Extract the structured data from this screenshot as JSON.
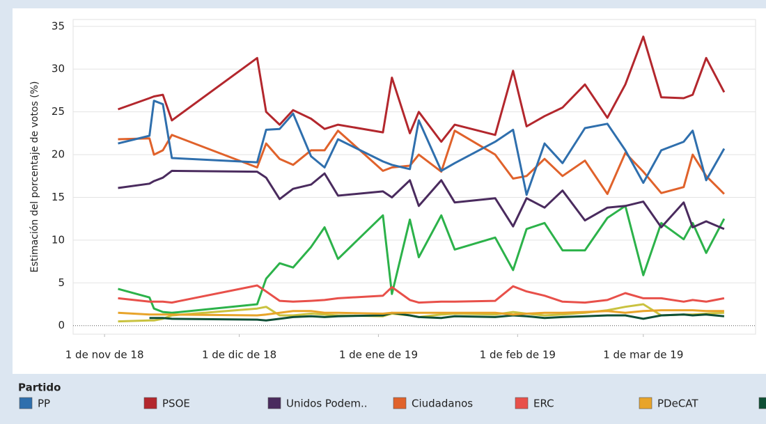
{
  "chart_data": {
    "type": "line",
    "y_label": "Estimación del porcentaje de votos (%)",
    "legend_title": "Partido",
    "legend": "bottom",
    "grid": true,
    "x": [
      "2018-11-04",
      "2018-11-11",
      "2018-11-12",
      "2018-11-14",
      "2018-11-16",
      "2018-12-05",
      "2018-12-07",
      "2018-12-10",
      "2018-12-13",
      "2018-12-17",
      "2018-12-20",
      "2018-12-23",
      "2019-01-02",
      "2019-01-04",
      "2019-01-08",
      "2019-01-10",
      "2019-01-15",
      "2019-01-18",
      "2019-01-27",
      "2019-01-31",
      "2019-02-03",
      "2019-02-07",
      "2019-02-11",
      "2019-02-16",
      "2019-02-21",
      "2019-02-25",
      "2019-03-01",
      "2019-03-05",
      "2019-03-10",
      "2019-03-12",
      "2019-03-15",
      "2019-03-19"
    ],
    "xlim": [
      "2018-10-25",
      "2019-03-26"
    ],
    "xticks": [
      {
        "value": "2018-11-01",
        "label": "1 de nov de 18"
      },
      {
        "value": "2018-12-01",
        "label": "1 de dic de 18"
      },
      {
        "value": "2019-01-01",
        "label": "1 de ene de 19"
      },
      {
        "value": "2019-02-01",
        "label": "1 de feb de 19"
      },
      {
        "value": "2019-03-01",
        "label": "1 de mar de 19"
      }
    ],
    "ylim": [
      -1,
      35.8
    ],
    "yticks": [
      0,
      5,
      10,
      15,
      20,
      25,
      30,
      35
    ],
    "series": [
      {
        "name": "PP",
        "color": "#2f6fad",
        "values": [
          21.3,
          22.2,
          26.3,
          25.9,
          19.6,
          19.1,
          22.9,
          23,
          24.8,
          19.8,
          18.5,
          21.8,
          19.2,
          18.8,
          18.3,
          24,
          18.1,
          19,
          21.5,
          22.9,
          15.3,
          21.3,
          19,
          23.1,
          23.6,
          20.5,
          16.7,
          20.5,
          21.5,
          22.8,
          17,
          20.7
        ]
      },
      {
        "name": "PSOE",
        "color": "#b3272d",
        "values": [
          25.3,
          26.6,
          26.8,
          27,
          24,
          31.3,
          25,
          23.5,
          25.2,
          24.2,
          23,
          23.5,
          22.6,
          29,
          22.5,
          25,
          21.5,
          23.5,
          22.3,
          29.8,
          23.3,
          24.5,
          25.5,
          28.2,
          24.3,
          28.2,
          33.8,
          26.7,
          26.6,
          27,
          31.3,
          27.3
        ]
      },
      {
        "name": "Unidos Podem..",
        "color": "#4a2b5e",
        "values": [
          16.1,
          16.6,
          16.9,
          17.3,
          18.1,
          18,
          17.3,
          14.8,
          16,
          16.5,
          17.8,
          15.2,
          15.7,
          15,
          17,
          14,
          17,
          14.4,
          14.9,
          11.6,
          14.9,
          13.8,
          15.8,
          12.3,
          13.8,
          14,
          14.5,
          11.5,
          14.4,
          11.5,
          12.2,
          11.3
        ]
      },
      {
        "name": "Ciudadanos",
        "color": "#e0622b",
        "values": [
          21.8,
          21.9,
          20,
          20.5,
          22.3,
          18.5,
          21.3,
          19.5,
          18.8,
          20.5,
          20.5,
          22.8,
          18.1,
          18.5,
          18.7,
          20,
          18,
          22.8,
          20,
          17.2,
          17.5,
          19.5,
          17.5,
          19.3,
          15.4,
          20.2,
          18,
          15.5,
          16.2,
          20,
          17.5,
          15.4
        ]
      },
      {
        "name": "ERC",
        "color": "#e8504a",
        "values": [
          3.2,
          2.8,
          2.8,
          2.8,
          2.7,
          4.7,
          4,
          2.9,
          2.8,
          2.9,
          3,
          3.2,
          3.5,
          4.5,
          3,
          2.7,
          2.8,
          2.8,
          2.9,
          4.6,
          4,
          3.5,
          2.8,
          2.7,
          3,
          3.8,
          3.2,
          3.2,
          2.8,
          3,
          2.8,
          3.2
        ]
      },
      {
        "name": "PDeCAT",
        "color": "#e8a42a",
        "values": [
          1.5,
          1.3,
          1.3,
          1.3,
          1.3,
          1.2,
          1.3,
          1.5,
          1.7,
          1.7,
          1.5,
          1.5,
          1.4,
          1.5,
          1.5,
          1.5,
          1.5,
          1.5,
          1.5,
          1.3,
          1.4,
          1.5,
          1.5,
          1.6,
          1.7,
          1.5,
          1.7,
          1.8,
          1.8,
          1.8,
          1.7,
          1.7
        ]
      },
      {
        "color": "#0e4f35",
        "values": [
          null,
          0.9,
          0.9,
          0.9,
          0.8,
          0.7,
          0.6,
          0.8,
          1,
          1.1,
          1,
          1.1,
          1.2,
          1.5,
          1.2,
          1,
          0.9,
          1.1,
          1,
          1.2,
          1.1,
          0.9,
          1,
          1.1,
          1.2,
          1.2,
          0.8,
          1.2,
          1.3,
          1.2,
          1.3,
          1.1
        ]
      },
      {
        "color": "#c9c23f",
        "values": [
          0.5,
          0.6,
          0.6,
          0.8,
          1.2,
          2,
          2.2,
          1.2,
          1.2,
          1.4,
          1.3,
          1.2,
          1.1,
          1.4,
          1.2,
          1,
          1.3,
          1.4,
          1.3,
          1.6,
          1.4,
          1.2,
          1.3,
          1.5,
          1.8,
          2.2,
          2.5,
          1.2,
          1.3,
          1.3,
          1.4,
          1.5
        ]
      },
      {
        "color": "#2cb24a",
        "values": [
          4.3,
          3.3,
          2,
          1.6,
          1.5,
          2.5,
          5.5,
          7.3,
          6.8,
          9.2,
          11.5,
          7.8,
          12.9,
          3.7,
          12.4,
          8,
          12.9,
          8.9,
          10.3,
          6.5,
          11.3,
          12,
          8.8,
          8.8,
          12.6,
          14,
          5.9,
          12,
          10.1,
          12,
          8.5,
          12.5
        ]
      }
    ]
  }
}
